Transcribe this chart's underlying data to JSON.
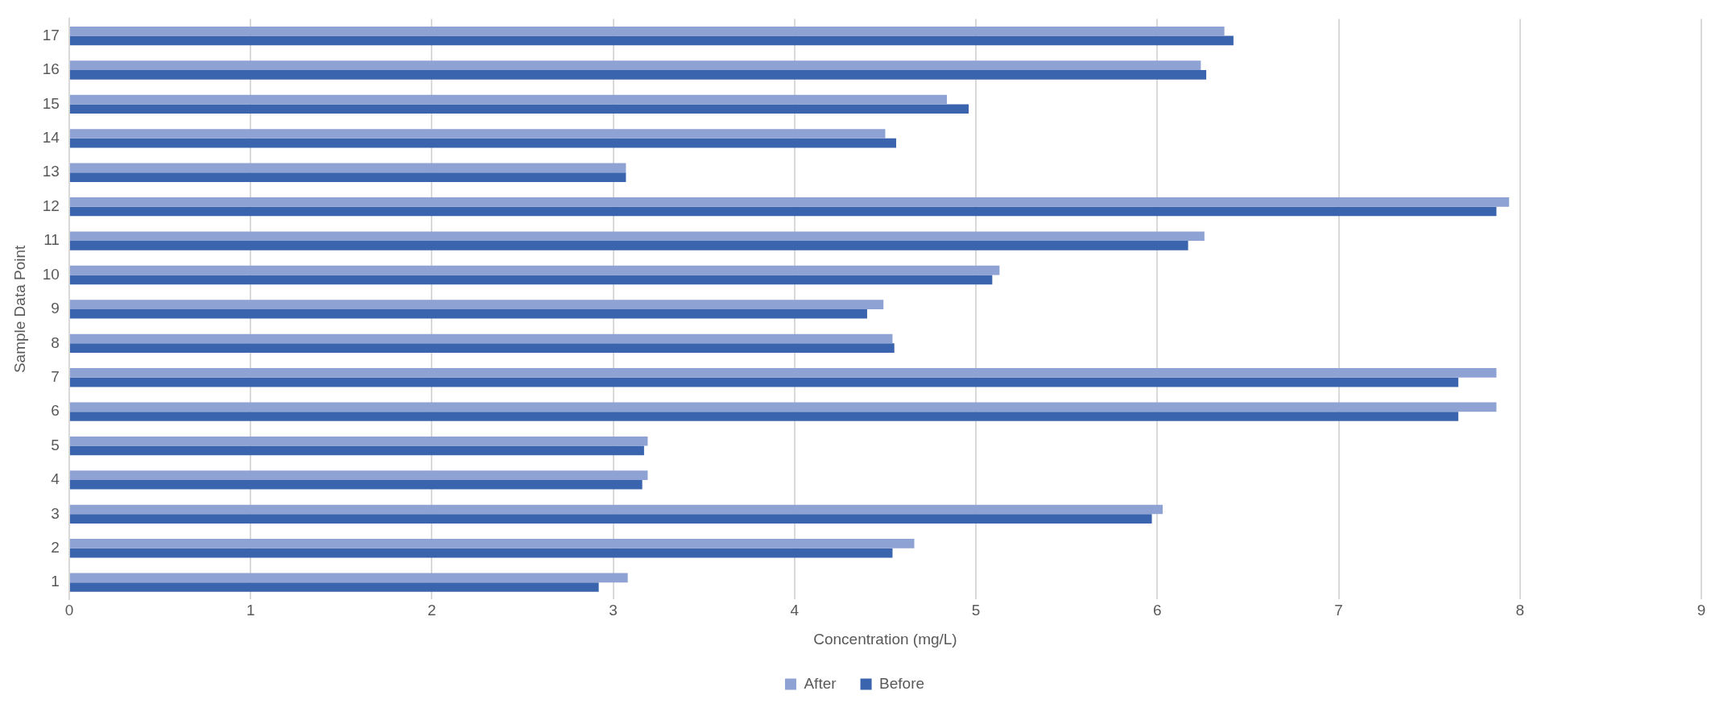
{
  "chart_data": {
    "type": "bar",
    "orientation": "horizontal",
    "xlabel": "Concentration (mg/L)",
    "ylabel": "Sample Data Point",
    "categories": [
      "17",
      "16",
      "15",
      "14",
      "13",
      "12",
      "11",
      "10",
      "9",
      "8",
      "7",
      "6",
      "5",
      "4",
      "3",
      "2",
      "1"
    ],
    "series": [
      {
        "name": "After",
        "color": "#8fa2d4",
        "values": [
          6.37,
          6.24,
          4.84,
          4.5,
          3.07,
          7.94,
          6.26,
          5.13,
          4.49,
          4.54,
          7.87,
          7.87,
          3.19,
          3.19,
          6.03,
          4.66,
          3.08
        ]
      },
      {
        "name": "Before",
        "color": "#3a64ad",
        "values": [
          6.42,
          6.27,
          4.96,
          4.56,
          3.07,
          7.87,
          6.17,
          5.09,
          4.4,
          4.55,
          7.66,
          7.66,
          3.17,
          3.16,
          5.97,
          4.54,
          2.92
        ]
      }
    ],
    "xlim": [
      0,
      9
    ],
    "xticks": [
      0,
      1,
      2,
      3,
      4,
      5,
      6,
      7,
      8,
      9
    ],
    "grid": "x",
    "legend": "bottom"
  }
}
